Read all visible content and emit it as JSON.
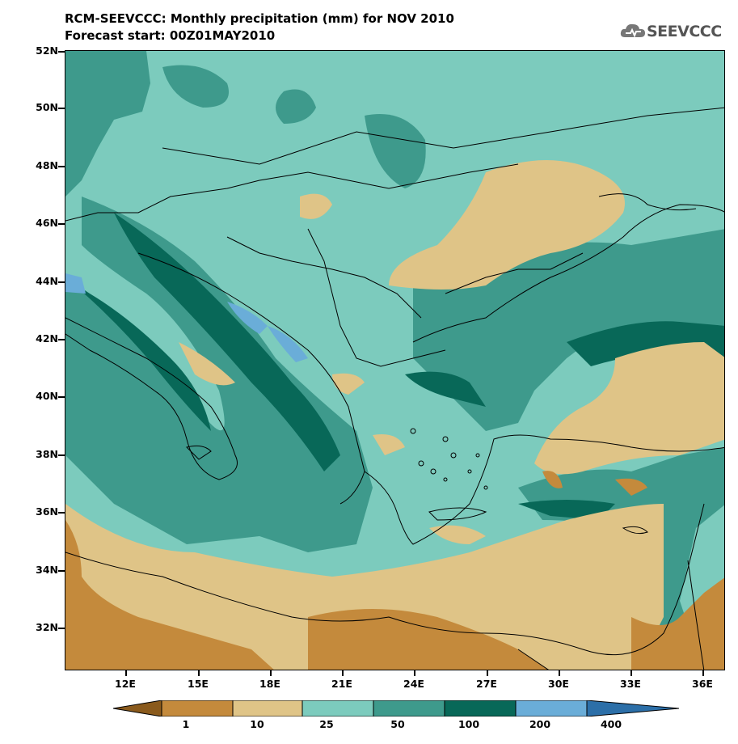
{
  "title_line1": "RCM-SEEVCCC: Monthly precipitation (mm) for NOV 2010",
  "title_line2": "Forecast start: 00Z01MAY2010",
  "logo_text": "SEEVCCC",
  "lat_labels": [
    "52N",
    "50N",
    "48N",
    "46N",
    "44N",
    "42N",
    "40N",
    "38N",
    "36N",
    "34N",
    "32N"
  ],
  "lon_labels": [
    "12E",
    "15E",
    "18E",
    "21E",
    "24E",
    "27E",
    "30E",
    "33E",
    "36E"
  ],
  "colorbar_labels": [
    "1",
    "10",
    "25",
    "50",
    "100",
    "200",
    "400"
  ],
  "colors": {
    "lt1": "#8a5a1c",
    "c1_10": "#c48a3c",
    "c10_25": "#dfc487",
    "c25_50": "#7ccbbd",
    "c50_100": "#3e9a8c",
    "c100_200": "#086858",
    "c200_400": "#6aadd8",
    "gt400": "#2c6fa8"
  }
}
